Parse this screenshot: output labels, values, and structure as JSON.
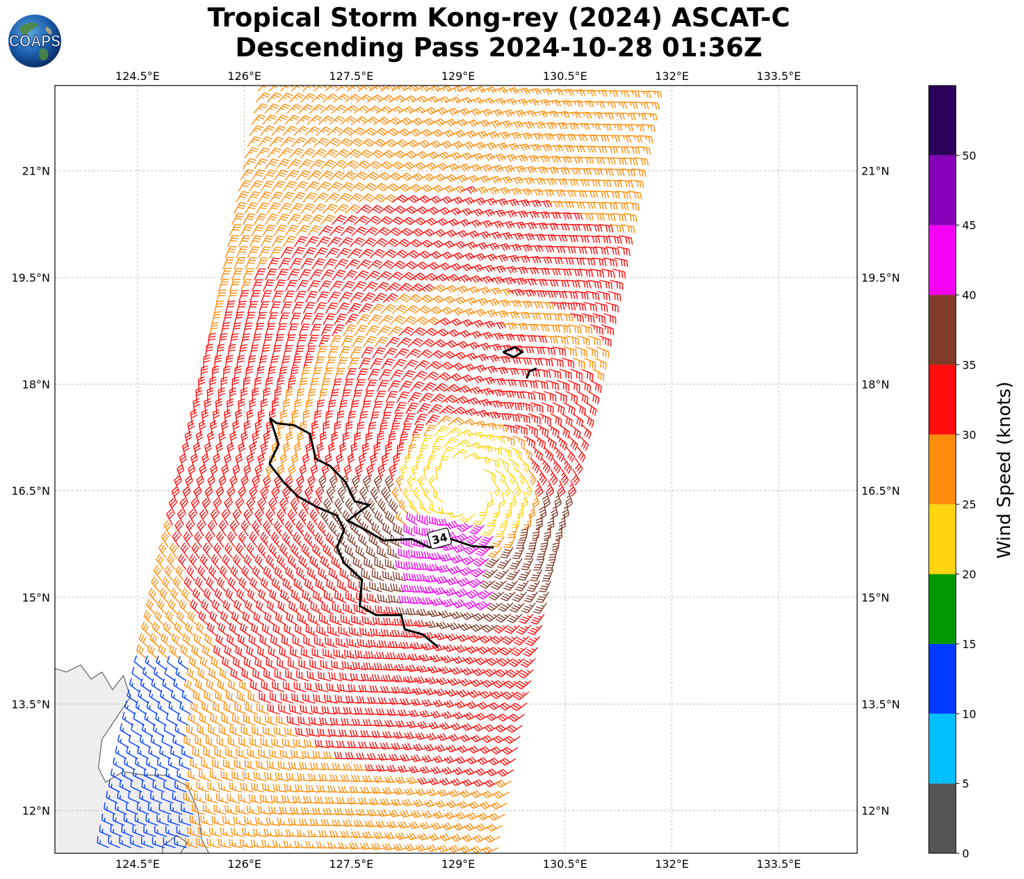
{
  "title": {
    "line1": "Tropical Storm Kong-rey (2024) ASCAT-C",
    "line2": "Descending Pass 2024-10-28 01:36Z"
  },
  "logo": {
    "text": "COAPS",
    "icon": "globe-icon"
  },
  "map": {
    "projection": "PlateCarree",
    "lon_range": [
      123.34,
      134.6
    ],
    "lat_range": [
      11.4,
      22.2
    ],
    "gridlines": true,
    "top_ticks": [
      "124.5°E",
      "126°E",
      "127.5°E",
      "129°E",
      "130.5°E",
      "132°E",
      "133.5°E"
    ],
    "bottom_ticks": [
      "124.5°E",
      "126°E",
      "127.5°E",
      "129°E",
      "130.5°E",
      "132°E",
      "133.5°E"
    ],
    "left_ticks": [
      "21°N",
      "19.5°N",
      "18°N",
      "16.5°N",
      "15°N",
      "13.5°N",
      "12°N"
    ],
    "right_ticks": [
      "21°N",
      "19.5°N",
      "18°N",
      "16.5°N",
      "15°N",
      "13.5°N",
      "12°N"
    ],
    "tick_lon_values": [
      124.5,
      126,
      127.5,
      129,
      130.5,
      132,
      133.5
    ],
    "tick_lat_values": [
      21,
      19.5,
      18,
      16.5,
      15,
      13.5,
      12
    ]
  },
  "storm": {
    "center_lon": 129.1,
    "center_lat": 16.55,
    "swath": {
      "left_edge_lon_at_lat12": 124.2,
      "direction": "descending"
    }
  },
  "contour": {
    "label": "34",
    "level_knots": 34,
    "label_lon": 128.74,
    "label_lat": 15.83
  },
  "colorbar": {
    "label": "Wind Speed (knots)",
    "ticks": [
      "0",
      "5",
      "10",
      "15",
      "20",
      "25",
      "30",
      "35",
      "40",
      "45",
      "50"
    ],
    "bins": [
      {
        "min": 0,
        "max": 5,
        "color": "#555555"
      },
      {
        "min": 5,
        "max": 10,
        "color": "#00bfff"
      },
      {
        "min": 10,
        "max": 15,
        "color": "#0039ff"
      },
      {
        "min": 15,
        "max": 20,
        "color": "#009900"
      },
      {
        "min": 20,
        "max": 25,
        "color": "#ffd50f"
      },
      {
        "min": 25,
        "max": 30,
        "color": "#ff8c0a"
      },
      {
        "min": 30,
        "max": 35,
        "color": "#ff0c0c"
      },
      {
        "min": 35,
        "max": 40,
        "color": "#803c28"
      },
      {
        "min": 40,
        "max": 45,
        "color": "#f500f5"
      },
      {
        "min": 45,
        "max": 50,
        "color": "#8500b8"
      },
      {
        "min": 50,
        "max": 55,
        "color": "#2b0058"
      }
    ]
  }
}
